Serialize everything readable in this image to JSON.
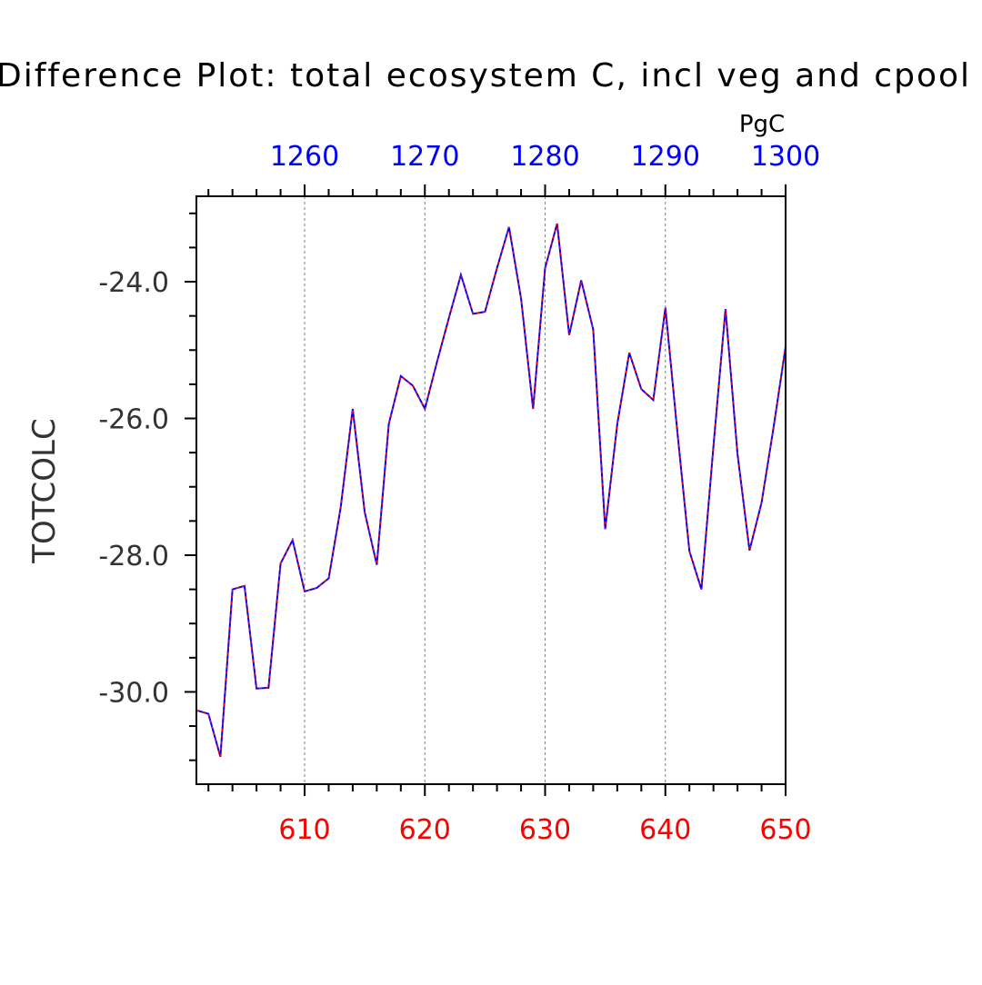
{
  "chart_data": {
    "type": "line",
    "title": "Difference Plot: total ecosystem C, incl veg and cpool",
    "ylabel": "TOTCOLC",
    "top_axis_unit": "PgC",
    "xlim": [
      601,
      650
    ],
    "ylim": [
      -31.35,
      -22.75
    ],
    "top_xlim": [
      1251,
      1300
    ],
    "x_ticks": [
      610,
      620,
      630,
      640,
      650
    ],
    "x_tick_labels": [
      "610",
      "620",
      "630",
      "640",
      "650"
    ],
    "top_ticks": [
      1260,
      1270,
      1280,
      1290,
      1300
    ],
    "top_tick_labels": [
      "1260",
      "1270",
      "1280",
      "1290",
      "1300"
    ],
    "y_ticks": [
      -24.0,
      -26.0,
      -28.0,
      -30.0
    ],
    "y_tick_labels": [
      "-24.0",
      "-26.0",
      "-28.0",
      "-30.0"
    ],
    "grid": "vertical dashed lines at major x ticks",
    "colors": {
      "series_primary": "#0000ff",
      "series_overlay": "#ff0000",
      "bottom_axis_labels": "#ff0000",
      "top_axis_labels": "#0000ff",
      "axes": "#000000",
      "grid": "#808080"
    },
    "x": [
      601,
      602,
      603,
      604,
      605,
      606,
      607,
      608,
      609,
      610,
      611,
      612,
      613,
      614,
      615,
      616,
      617,
      618,
      619,
      620,
      621,
      622,
      623,
      624,
      625,
      626,
      627,
      628,
      629,
      630,
      631,
      632,
      633,
      634,
      635,
      636,
      637,
      638,
      639,
      640,
      641,
      642,
      643,
      644,
      645,
      646,
      647,
      648,
      649,
      650
    ],
    "series": [
      {
        "values": [
          -30.27,
          -30.32,
          -30.95,
          -28.5,
          -28.45,
          -29.95,
          -29.94,
          -28.12,
          -27.78,
          -28.53,
          -28.48,
          -28.34,
          -27.3,
          -25.86,
          -27.37,
          -28.14,
          -26.08,
          -25.38,
          -25.52,
          -25.86,
          -25.18,
          -24.53,
          -23.9,
          -24.47,
          -24.44,
          -23.8,
          -23.2,
          -24.25,
          -25.86,
          -23.8,
          -23.15,
          -24.78,
          -23.98,
          -24.7,
          -27.62,
          -26.08,
          -25.04,
          -25.57,
          -25.73,
          -24.38,
          -26.2,
          -27.94,
          -28.5,
          -26.4,
          -24.4,
          -26.52,
          -27.93,
          -27.23,
          -26.13,
          -24.95
        ]
      }
    ]
  }
}
